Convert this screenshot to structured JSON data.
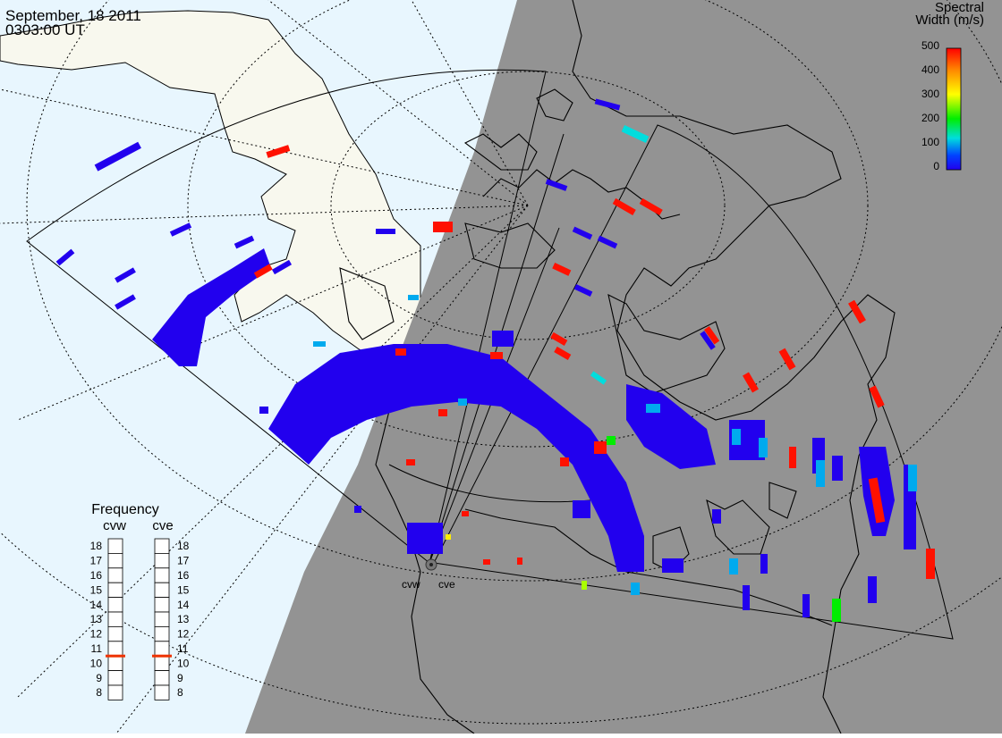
{
  "header": {
    "date": "September, 18 2011",
    "time": "0303:00 UT"
  },
  "colorbar": {
    "title_line1": "Spectral",
    "title_line2": "Width (m/s)",
    "ticks": [
      "500",
      "400",
      "300",
      "200",
      "100",
      "0"
    ],
    "stops": [
      "#ff0000",
      "#ff8800",
      "#ffff00",
      "#00ee00",
      "#00dddd",
      "#0044ff",
      "#2200ee"
    ]
  },
  "frequency": {
    "title": "Frequency",
    "radars": [
      {
        "name": "cvw",
        "selected_mhz": 10.5
      },
      {
        "name": "cve",
        "selected_mhz": 10.5
      }
    ],
    "scale": [
      "18",
      "17",
      "16",
      "15",
      "14",
      "13",
      "12",
      "11",
      "10",
      "9",
      "8"
    ],
    "marker_color": "#ee3300"
  },
  "sites": {
    "west": "cvw",
    "east": "cve"
  },
  "colors": {
    "ocean": "#e8f6fe",
    "land_day": "#f8f8ee",
    "night": "#939393",
    "coast": "#000000",
    "echo_low": "#2200ee",
    "echo_mid": "#00aaee",
    "echo_high": "#ff1100"
  }
}
